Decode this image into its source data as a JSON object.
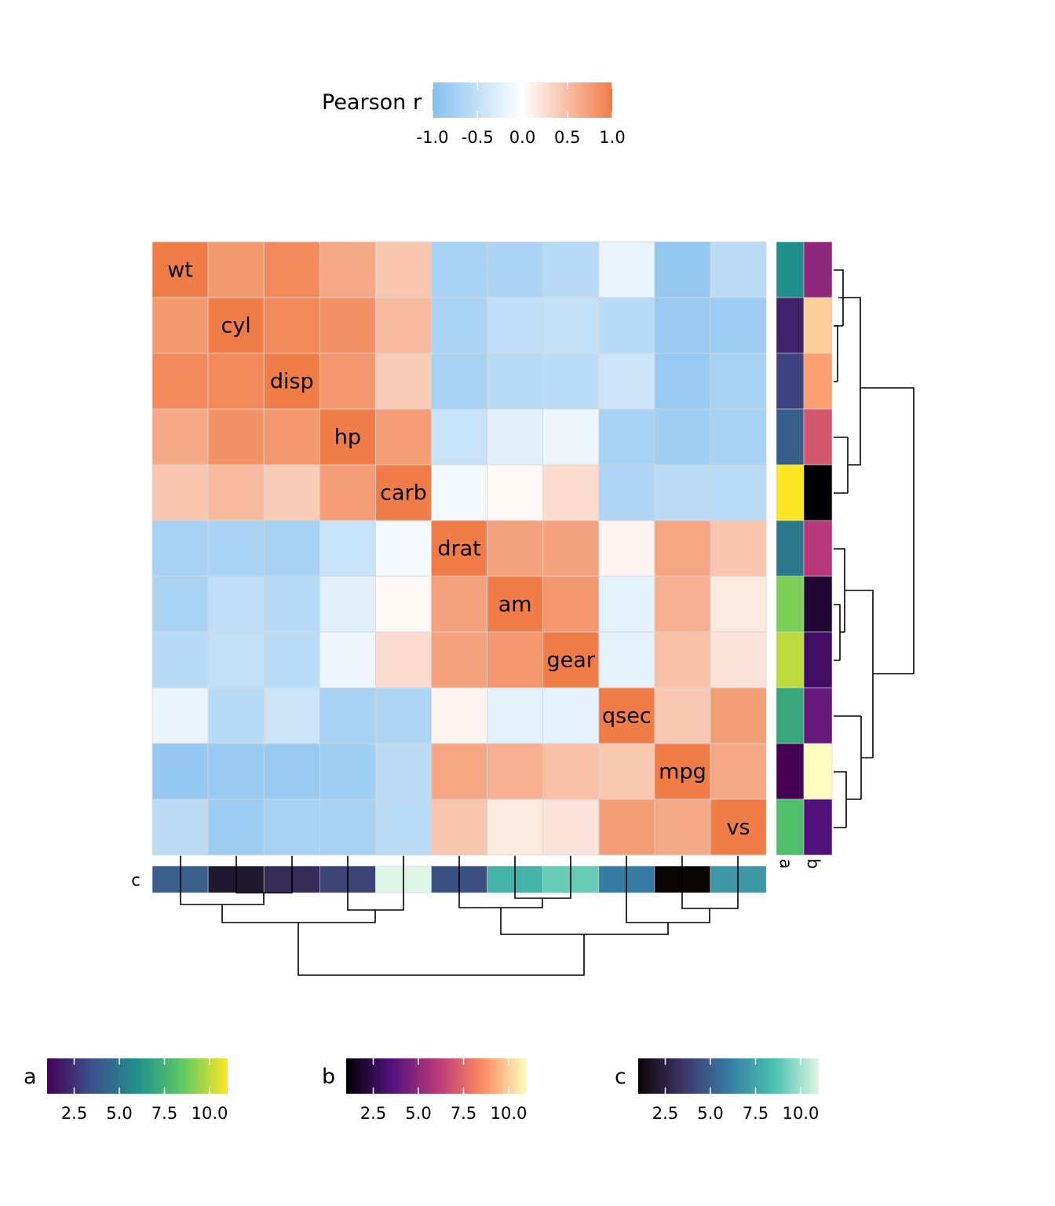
{
  "chart_data": {
    "type": "heatmap",
    "labels": [
      "wt",
      "cyl",
      "disp",
      "hp",
      "carb",
      "drat",
      "am",
      "gear",
      "qsec",
      "mpg",
      "vs"
    ],
    "matrix": [
      [
        1.0,
        0.78,
        0.89,
        0.66,
        0.43,
        -0.71,
        -0.69,
        -0.58,
        -0.17,
        -0.87,
        -0.55
      ],
      [
        0.78,
        1.0,
        0.9,
        0.83,
        0.53,
        -0.7,
        -0.52,
        -0.49,
        -0.59,
        -0.85,
        -0.81
      ],
      [
        0.89,
        0.9,
        1.0,
        0.79,
        0.39,
        -0.71,
        -0.59,
        -0.56,
        -0.43,
        -0.85,
        -0.71
      ],
      [
        0.66,
        0.83,
        0.79,
        1.0,
        0.75,
        -0.45,
        -0.24,
        -0.13,
        -0.71,
        -0.78,
        -0.72
      ],
      [
        0.43,
        0.53,
        0.39,
        0.75,
        1.0,
        -0.09,
        0.06,
        0.27,
        -0.66,
        -0.55,
        -0.57
      ],
      [
        -0.71,
        -0.7,
        -0.71,
        -0.45,
        -0.09,
        1.0,
        0.71,
        0.7,
        0.09,
        0.68,
        0.44
      ],
      [
        -0.69,
        -0.52,
        -0.59,
        -0.24,
        0.06,
        0.71,
        1.0,
        0.79,
        -0.23,
        0.6,
        0.17
      ],
      [
        -0.58,
        -0.49,
        -0.56,
        -0.13,
        0.27,
        0.7,
        0.79,
        1.0,
        -0.21,
        0.48,
        0.21
      ],
      [
        -0.17,
        -0.59,
        -0.43,
        -0.71,
        -0.66,
        0.09,
        -0.23,
        -0.21,
        1.0,
        0.42,
        0.74
      ],
      [
        -0.87,
        -0.85,
        -0.85,
        -0.78,
        -0.55,
        0.68,
        0.6,
        0.48,
        0.42,
        1.0,
        0.66
      ],
      [
        -0.55,
        -0.81,
        -0.71,
        -0.72,
        -0.57,
        0.44,
        0.17,
        0.21,
        0.74,
        0.66,
        1.0
      ]
    ],
    "color_legend": {
      "title": "Pearson r",
      "ticks": [
        "-1.0",
        "-0.5",
        "0.0",
        "0.5",
        "1.0"
      ],
      "low_color": "#85c0ef",
      "mid_color": "#ffffff",
      "high_color": "#f07c48",
      "range": [
        -1,
        1
      ]
    },
    "row_annotations": {
      "names": [
        "a",
        "b"
      ],
      "a": [
        6,
        2,
        3,
        4,
        11,
        5,
        9,
        10,
        7,
        1,
        8
      ],
      "b": [
        5,
        10,
        9,
        7,
        1,
        6,
        2,
        3,
        4,
        11,
        3.5
      ]
    },
    "col_annotation": {
      "name": "c",
      "values": [
        5,
        2,
        3,
        4,
        11,
        4.5,
        8,
        9,
        6,
        1,
        7
      ]
    },
    "annotation_legends": [
      {
        "title": "a",
        "palette": "viridis",
        "ticks": [
          "2.5",
          "5.0",
          "7.5",
          "10.0"
        ],
        "range": [
          1,
          11
        ]
      },
      {
        "title": "b",
        "palette": "magma",
        "ticks": [
          "2.5",
          "5.0",
          "7.5",
          "10.0"
        ],
        "range": [
          1,
          11
        ]
      },
      {
        "title": "c",
        "palette": "mako",
        "ticks": [
          "2.5",
          "5.0",
          "7.5",
          "10.0"
        ],
        "range": [
          1,
          11
        ]
      }
    ]
  }
}
